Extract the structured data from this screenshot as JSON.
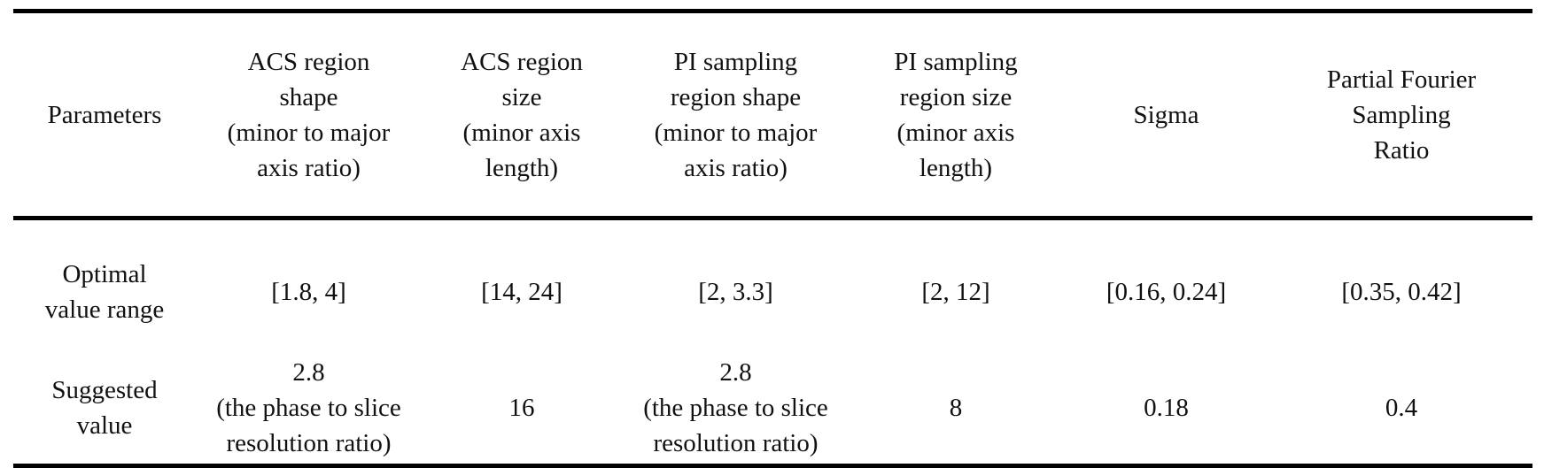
{
  "table": {
    "headers": [
      [
        "Parameters"
      ],
      [
        "ACS region",
        "shape",
        "(minor to major",
        "axis ratio)"
      ],
      [
        "ACS region",
        "size",
        "(minor axis",
        "length)"
      ],
      [
        "PI sampling",
        "region shape",
        "(minor to major",
        "axis ratio)"
      ],
      [
        "PI sampling",
        "region size",
        "(minor axis",
        "length)"
      ],
      [
        "Sigma"
      ],
      [
        "Partial Fourier",
        "Sampling",
        "Ratio"
      ]
    ],
    "rows": [
      {
        "label": [
          "Optimal",
          "value range"
        ],
        "cells": [
          [
            "[1.8, 4]"
          ],
          [
            "[14, 24]"
          ],
          [
            "[2, 3.3]"
          ],
          [
            "[2, 12]"
          ],
          [
            "[0.16, 0.24]"
          ],
          [
            "[0.35, 0.42]"
          ]
        ]
      },
      {
        "label": [
          "Suggested",
          "value"
        ],
        "cells": [
          [
            "2.8",
            "(the phase to slice",
            "resolution ratio)"
          ],
          [
            "16"
          ],
          [
            "2.8",
            "(the phase to slice",
            "resolution ratio)"
          ],
          [
            "8"
          ],
          [
            "0.18"
          ],
          [
            "0.4"
          ]
        ]
      }
    ]
  }
}
